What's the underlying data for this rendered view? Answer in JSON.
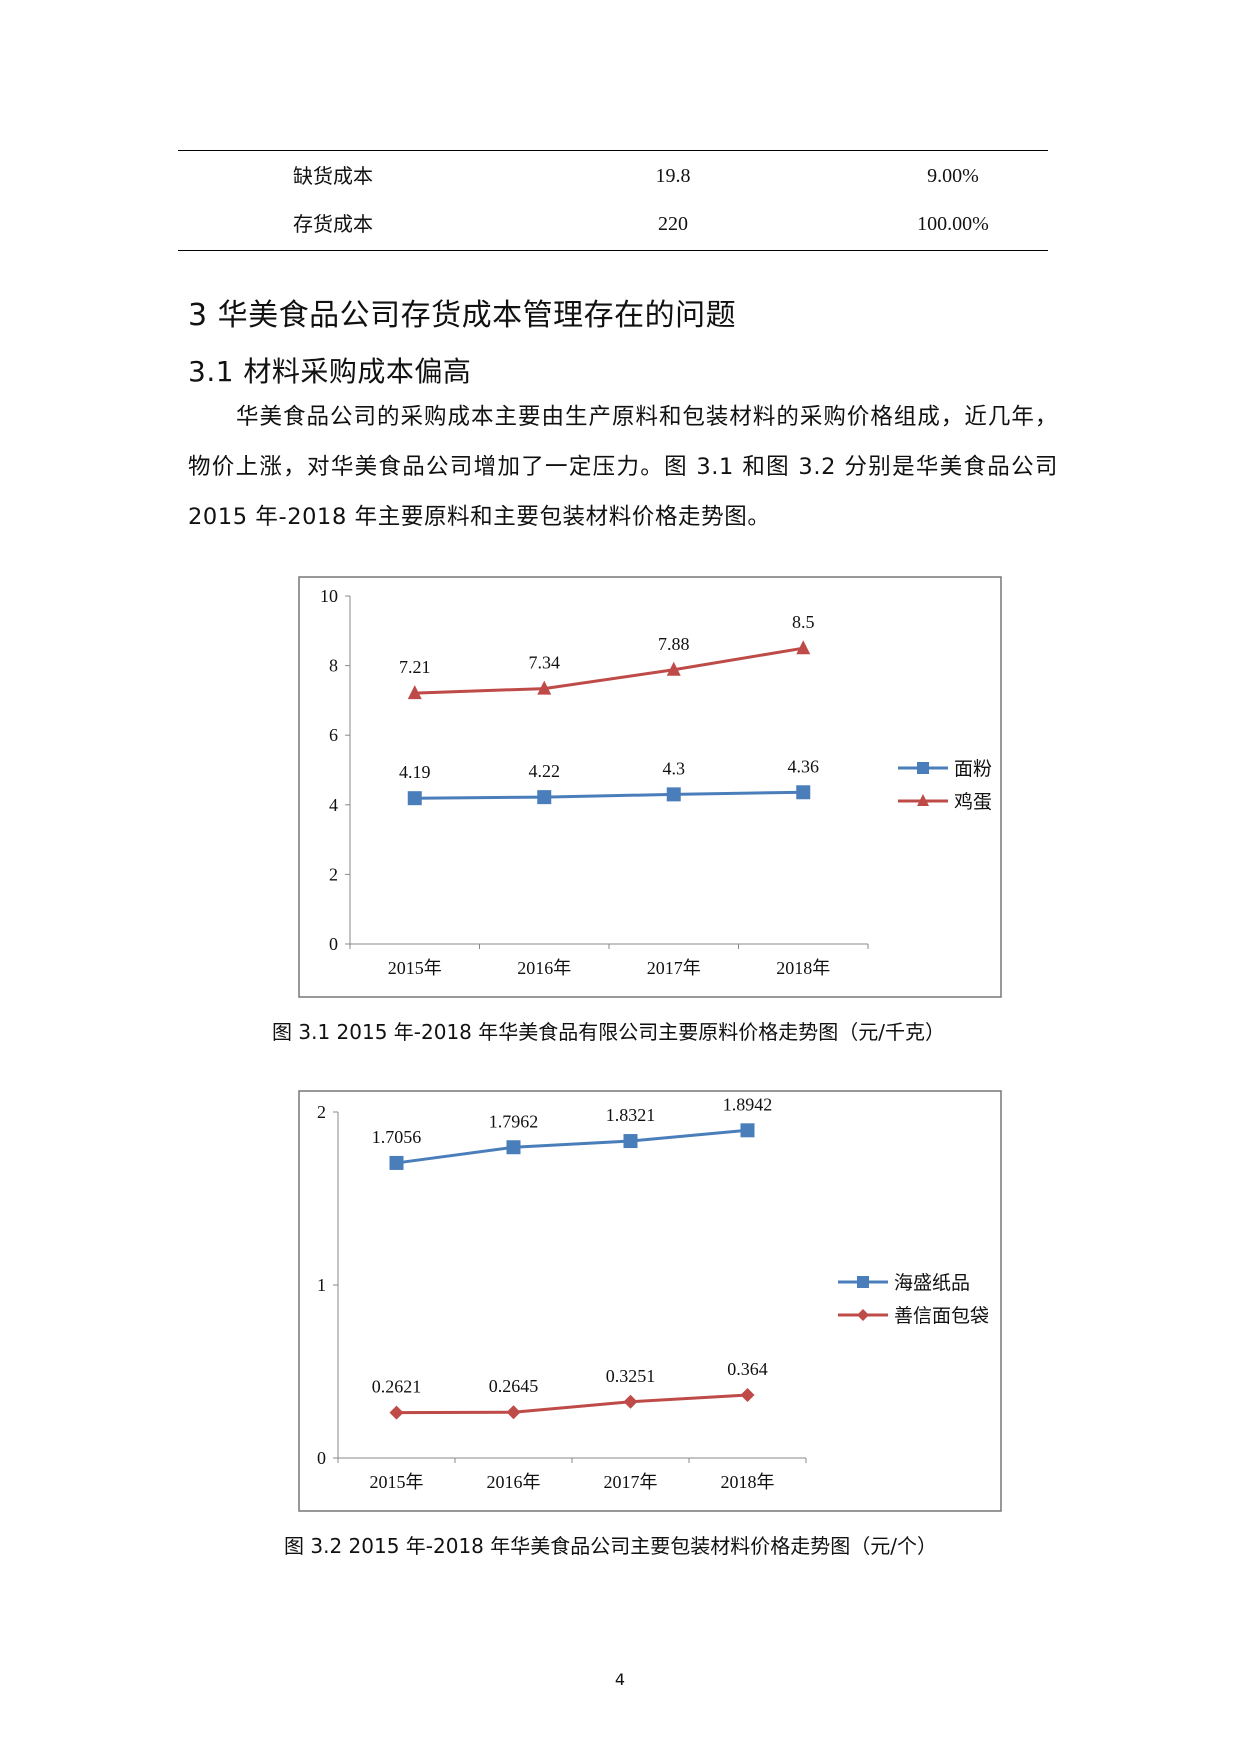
{
  "table": {
    "rows": [
      {
        "item": "缺货成本",
        "amount": "19.8",
        "ratio": "9.00%"
      },
      {
        "item": "存货成本",
        "amount": "220",
        "ratio": "100.00%"
      }
    ]
  },
  "heading1": "3 华美食品公司存货成本管理存在的问题",
  "heading2": "3.1 材料采购成本偏高",
  "paragraph": "华美食品公司的采购成本主要由生产原料和包装材料的采购价格组成，近几年，物价上涨，对华美食品公司增加了一定压力。图 3.1 和图 3.2 分别是华美食品公司 2015 年-2018 年主要原料和主要包装材料价格走势图。",
  "figure1_caption": "图 3.1 2015 年-2018 年华美食品有限公司主要原料价格走势图（元/千克）",
  "figure2_caption": "图 3.2 2015 年-2018 年华美食品公司主要包装材料价格走势图（元/个）",
  "page_number": "4",
  "chart_data": [
    {
      "type": "line",
      "title": "",
      "categories": [
        "2015年",
        "2016年",
        "2017年",
        "2018年"
      ],
      "ylim": [
        0,
        10
      ],
      "yticks": [
        0,
        2,
        4,
        6,
        8,
        10
      ],
      "grid": false,
      "legend": "right",
      "series": [
        {
          "name": "面粉",
          "values": [
            4.19,
            4.22,
            4.3,
            4.36
          ],
          "labels": [
            "4.19",
            "4.22",
            "4.3",
            "4.36"
          ],
          "color": "#4a7ebb",
          "marker": "square"
        },
        {
          "name": "鸡蛋",
          "values": [
            7.21,
            7.34,
            7.88,
            8.5
          ],
          "labels": [
            "7.21",
            "7.34",
            "7.88",
            "8.5"
          ],
          "color": "#be4b48",
          "marker": "triangle"
        }
      ]
    },
    {
      "type": "line",
      "title": "",
      "categories": [
        "2015年",
        "2016年",
        "2017年",
        "2018年"
      ],
      "ylim": [
        0,
        2
      ],
      "yticks": [
        0,
        1,
        2
      ],
      "grid": false,
      "legend": "right",
      "series": [
        {
          "name": "海盛纸品",
          "values": [
            1.7056,
            1.7962,
            1.8321,
            1.8942
          ],
          "labels": [
            "1.7056",
            "1.7962",
            "1.8321",
            "1.8942"
          ],
          "color": "#4a7ebb",
          "marker": "square"
        },
        {
          "name": "善信面包袋",
          "values": [
            0.2621,
            0.2645,
            0.3251,
            0.364
          ],
          "labels": [
            "0.2621",
            "0.2645",
            "0.3251",
            "0.364"
          ],
          "color": "#be4b48",
          "marker": "diamond"
        }
      ]
    }
  ]
}
